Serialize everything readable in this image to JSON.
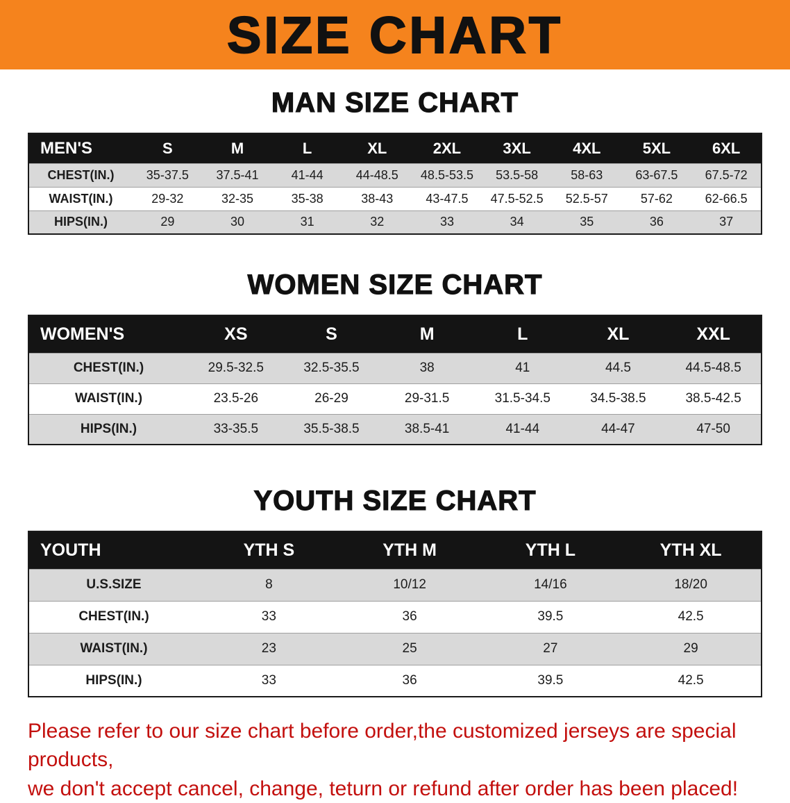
{
  "banner": {
    "title": "SIZE CHART"
  },
  "colors": {
    "banner_orange": "#f5831d",
    "table_header_black": "#141414",
    "row_gray": "#d9d9d9",
    "disclaimer_red": "#c3100e"
  },
  "men": {
    "heading": "MAN SIZE CHART",
    "header": [
      "MEN'S",
      "S",
      "M",
      "L",
      "XL",
      "2XL",
      "3XL",
      "4XL",
      "5XL",
      "6XL"
    ],
    "rows": [
      [
        "CHEST(IN.)",
        "35-37.5",
        "37.5-41",
        "41-44",
        "44-48.5",
        "48.5-53.5",
        "53.5-58",
        "58-63",
        "63-67.5",
        "67.5-72"
      ],
      [
        "WAIST(IN.)",
        "29-32",
        "32-35",
        "35-38",
        "38-43",
        "43-47.5",
        "47.5-52.5",
        "52.5-57",
        "57-62",
        "62-66.5"
      ],
      [
        "HIPS(IN.)",
        "29",
        "30",
        "31",
        "32",
        "33",
        "34",
        "35",
        "36",
        "37"
      ]
    ]
  },
  "women": {
    "heading": "WOMEN SIZE CHART",
    "header": [
      "WOMEN'S",
      "XS",
      "S",
      "M",
      "L",
      "XL",
      "XXL"
    ],
    "rows": [
      [
        "CHEST(IN.)",
        "29.5-32.5",
        "32.5-35.5",
        "38",
        "41",
        "44.5",
        "44.5-48.5"
      ],
      [
        "WAIST(IN.)",
        "23.5-26",
        "26-29",
        "29-31.5",
        "31.5-34.5",
        "34.5-38.5",
        "38.5-42.5"
      ],
      [
        "HIPS(IN.)",
        "33-35.5",
        "35.5-38.5",
        "38.5-41",
        "41-44",
        "44-47",
        "47-50"
      ]
    ]
  },
  "youth": {
    "heading": "YOUTH SIZE CHART",
    "header": [
      "YOUTH",
      "YTH S",
      "YTH M",
      "YTH L",
      "YTH XL"
    ],
    "rows": [
      [
        "U.S.SIZE",
        "8",
        "10/12",
        "14/16",
        "18/20"
      ],
      [
        "CHEST(IN.)",
        "33",
        "36",
        "39.5",
        "42.5"
      ],
      [
        "WAIST(IN.)",
        "23",
        "25",
        "27",
        "29"
      ],
      [
        "HIPS(IN.)",
        "33",
        "36",
        "39.5",
        "42.5"
      ]
    ]
  },
  "disclaimer": {
    "line1": "Please refer to our size chart before order,the customized jerseys are special products,",
    "line2": "we don't accept cancel, change, teturn or refund after order has been placed!"
  }
}
